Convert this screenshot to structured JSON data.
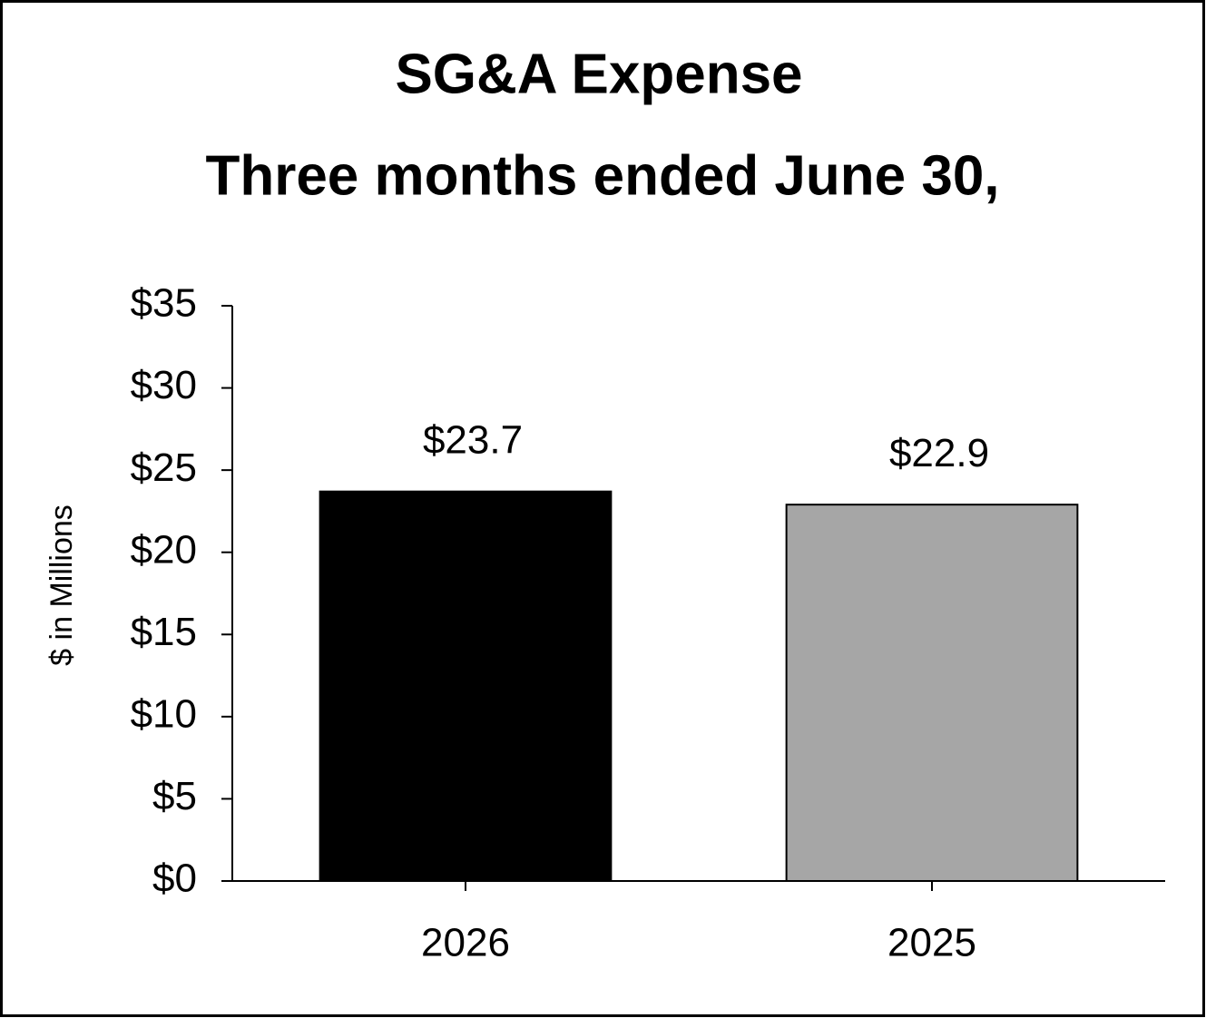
{
  "chart_data": {
    "type": "bar",
    "title": "SG&A Expense",
    "subtitle": "Three months ended June 30,",
    "y_label": "$ in Millions",
    "categories": [
      "2026",
      "2025"
    ],
    "values": [
      23.7,
      22.9
    ],
    "value_labels": [
      "$23.7",
      "$22.9"
    ],
    "colors": [
      "#000000",
      "#a6a6a6"
    ],
    "ylim": [
      0,
      35
    ],
    "yticks": [
      {
        "value": 0,
        "label": "$0"
      },
      {
        "value": 5,
        "label": "$5"
      },
      {
        "value": 10,
        "label": "$10"
      },
      {
        "value": 15,
        "label": "$15"
      },
      {
        "value": 20,
        "label": "$20"
      },
      {
        "value": 25,
        "label": "$25"
      },
      {
        "value": 30,
        "label": "$30"
      },
      {
        "value": 35,
        "label": "$35"
      }
    ],
    "grid": false
  }
}
